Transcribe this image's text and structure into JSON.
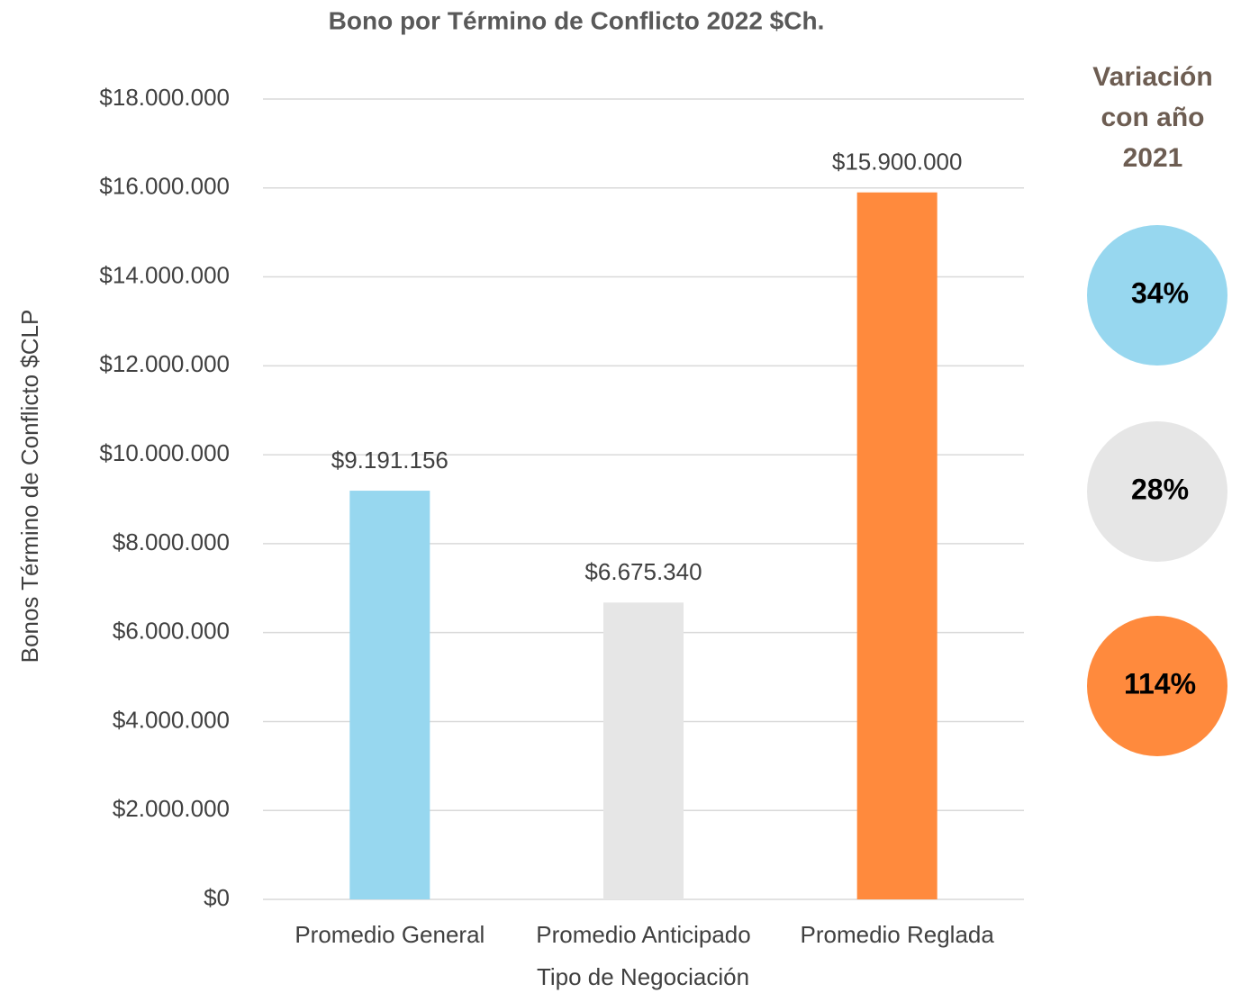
{
  "chart_data": {
    "type": "bar",
    "title": "Bono por Término de Conflicto 2022 $Ch.",
    "x_label": "Tipo de Negociación",
    "y_label": "Bonos Término de Conflicto $CLP",
    "categories": [
      "Promedio General",
      "Promedio Anticipado",
      "Promedio Reglada"
    ],
    "values": [
      9191156,
      6675340,
      15900000
    ],
    "value_labels": [
      "$9.191.156",
      "$6.675.340",
      "$15.900.000"
    ],
    "colors": [
      "#97d7ef",
      "#e6e6e6",
      "#ff8a3d"
    ],
    "ylim": [
      0,
      18000000
    ],
    "yticks": [
      {
        "value": 0,
        "label": "$0"
      },
      {
        "value": 2000000,
        "label": "$2.000.000"
      },
      {
        "value": 4000000,
        "label": "$4.000.000"
      },
      {
        "value": 6000000,
        "label": "$6.000.000"
      },
      {
        "value": 8000000,
        "label": "$8.000.000"
      },
      {
        "value": 10000000,
        "label": "$10.000.000"
      },
      {
        "value": 12000000,
        "label": "$12.000.000"
      },
      {
        "value": 14000000,
        "label": "$14.000.000"
      },
      {
        "value": 16000000,
        "label": "$16.000.000"
      },
      {
        "value": 18000000,
        "label": "$18.000.000"
      }
    ],
    "grid": true,
    "variation": {
      "title": "Variación con año 2021",
      "values": [
        34,
        28,
        114
      ],
      "value_labels": [
        "34%",
        "28%",
        "114%"
      ],
      "colors": [
        "#97d7ef",
        "#e6e6e6",
        "#ff8a3d"
      ]
    }
  }
}
